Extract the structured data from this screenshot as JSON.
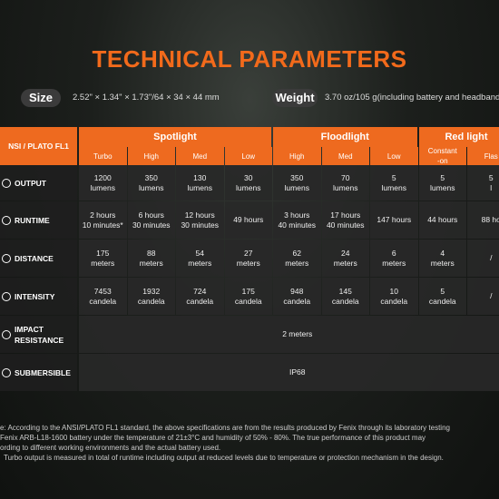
{
  "title": "TECHNICAL PARAMETERS",
  "size": {
    "label": "Size",
    "value": "2.52\" × 1.34\" × 1.73\"/64 × 34 × 44 mm"
  },
  "weight": {
    "label": "Weight",
    "value": "3.70 oz/105 g(including battery and headband"
  },
  "table": {
    "corner": "NSI / PLATO FL1",
    "groups": [
      {
        "name": "Spotlight",
        "columns": [
          "Turbo",
          "High",
          "Med",
          "Low"
        ]
      },
      {
        "name": "Floodlight",
        "columns": [
          "High",
          "Med",
          "Low"
        ]
      },
      {
        "name": "Red light",
        "columns": [
          "Constant\n-on",
          "Flas"
        ]
      }
    ],
    "rows": [
      {
        "label": "OUTPUT",
        "cells": [
          "1200\nlumens",
          "350\nlumens",
          "130\nlumens",
          "30\nlumens",
          "350\nlumens",
          "70\nlumens",
          "5\nlumens",
          "5\nlumens",
          "5\nl"
        ]
      },
      {
        "label": "RUNTIME",
        "cells": [
          "2 hours\n10 minutes*",
          "6 hours\n30 minutes",
          "12 hours\n30 minutes",
          "49 hours",
          "3 hours\n40 minutes",
          "17 hours\n40 minutes",
          "147 hours",
          "44 hours",
          "88 ho"
        ]
      },
      {
        "label": "DISTANCE",
        "cells": [
          "175\nmeters",
          "88\nmeters",
          "54\nmeters",
          "27\nmeters",
          "62\nmeters",
          "24\nmeters",
          "6\nmeters",
          "4\nmeters",
          "/"
        ]
      },
      {
        "label": "INTENSITY",
        "cells": [
          "7453\ncandela",
          "1932\ncandela",
          "724\ncandela",
          "175\ncandela",
          "948\ncandela",
          "145\ncandela",
          "10\ncandela",
          "5\ncandela",
          "/"
        ]
      },
      {
        "label": "IMPACT\nRESISTANCE",
        "cells": [
          "2 meters"
        ]
      },
      {
        "label": "SUBMERSIBLE",
        "cells": [
          "IP68"
        ]
      }
    ]
  },
  "notes": [
    "e: According to the ANSI/PLATO FL1 standard, the above specifications are from the results produced by Fenix through its laboratory testing",
    "Fenix ARB-L18-1600 battery under the temperature of 21±3°C and humidity of 50% - 80%. The true performance of this product may",
    "ording to different working environments and the actual battery used.",
    "Turbo output is measured in total of runtime including output at reduced levels due to temperature or protection mechanism in the design."
  ]
}
